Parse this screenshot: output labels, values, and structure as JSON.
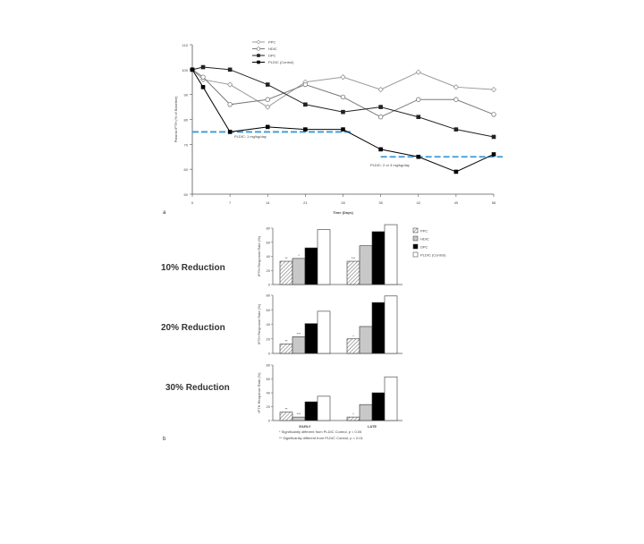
{
  "panel_a": {
    "panel_letter": "a",
    "threshold_labels": [
      "PLDIC: 1 mg/kg/day",
      "PLDIC: 2 or 3 mg/kg/day"
    ],
    "threshold_color": "#3a9ad9"
  },
  "panel_b": {
    "panel_letter": "b",
    "row_labels": [
      "10% Reduction",
      "20% Reduction",
      "30% Reduction"
    ],
    "footnotes": [
      "* Significantly different from PLDIC Control, p < 0.05",
      "** Significantly different from PLDIC Control, p < 0.01"
    ]
  },
  "chart_data": [
    {
      "type": "line",
      "title": "",
      "xlabel": "Time (Days)",
      "ylabel": "Plasma IPTH (% of Baseline)",
      "x": [
        0,
        7,
        14,
        21,
        28,
        35,
        42,
        49,
        56
      ],
      "xticks": [
        "0",
        "7",
        "14",
        "21",
        "28",
        "35",
        "42",
        "49",
        "56"
      ],
      "yticks": [
        "50",
        "60",
        "70",
        "80",
        "90",
        "100",
        "110"
      ],
      "ylim": [
        50,
        110
      ],
      "grid": false,
      "legend": "top-left",
      "series": [
        {
          "name": "PPC",
          "marker": "diamond-open",
          "x": [
            0,
            2,
            7,
            14,
            21,
            28,
            35,
            42,
            49,
            56
          ],
          "values": [
            100,
            96,
            94,
            85,
            95,
            97,
            92,
            99,
            93,
            92
          ]
        },
        {
          "name": "HDIC",
          "marker": "circle-open",
          "x": [
            0,
            2,
            7,
            14,
            21,
            28,
            35,
            42,
            49,
            56
          ],
          "values": [
            100,
            97,
            86,
            88,
            94,
            89,
            81,
            88,
            88,
            82
          ]
        },
        {
          "name": "DPC",
          "marker": "square-filled",
          "x": [
            0,
            2,
            7,
            14,
            21,
            28,
            35,
            42,
            49,
            56
          ],
          "values": [
            100,
            101,
            100,
            94,
            86,
            83,
            85,
            81,
            76,
            73
          ]
        },
        {
          "name": "PLDIC (Control)",
          "marker": "square-filled",
          "x": [
            0,
            2,
            7,
            14,
            21,
            28,
            35,
            42,
            49,
            56
          ],
          "values": [
            100,
            93,
            75,
            77,
            76,
            76,
            68,
            65,
            59,
            66
          ]
        }
      ],
      "thresholds": [
        {
          "value": 75,
          "x_range": [
            0,
            28
          ]
        },
        {
          "value": 65,
          "x_range": [
            35,
            56
          ]
        }
      ]
    },
    {
      "type": "bar",
      "title": "10% Reduction",
      "ylabel": "IPTH Response Rate (%)",
      "categories": [
        "EARLY",
        "LATE"
      ],
      "ylim": [
        0,
        80
      ],
      "yticks": [
        "0",
        "20",
        "40",
        "60",
        "80"
      ],
      "legend": "right",
      "series": [
        {
          "name": "PPC",
          "values": [
            33,
            33
          ]
        },
        {
          "name": "HDIC",
          "values": [
            37,
            55
          ]
        },
        {
          "name": "DPC",
          "values": [
            52,
            75
          ]
        },
        {
          "name": "PLDIC (Control)",
          "values": [
            78,
            85
          ]
        }
      ],
      "annotations": [
        "**",
        "*",
        "***",
        ""
      ]
    },
    {
      "type": "bar",
      "title": "20% Reduction",
      "ylabel": "IPTH Response Rate (%)",
      "categories": [
        "EARLY",
        "LATE"
      ],
      "ylim": [
        0,
        80
      ],
      "yticks": [
        "0",
        "20",
        "40",
        "60",
        "80"
      ],
      "series": [
        {
          "name": "PPC",
          "values": [
            13,
            20
          ]
        },
        {
          "name": "HDIC",
          "values": [
            23,
            37
          ]
        },
        {
          "name": "DPC",
          "values": [
            41,
            70
          ]
        },
        {
          "name": "PLDIC (Control)",
          "values": [
            58,
            79
          ]
        }
      ],
      "annotations": [
        "**",
        "***",
        "*",
        ""
      ]
    },
    {
      "type": "bar",
      "title": "30% Reduction",
      "ylabel": "IPTH Response Rate (%)",
      "categories": [
        "EARLY",
        "LATE"
      ],
      "xticks": [
        "EARLY",
        "LATE"
      ],
      "ylim": [
        0,
        80
      ],
      "yticks": [
        "0",
        "20",
        "40",
        "60",
        "80"
      ],
      "series": [
        {
          "name": "PPC",
          "values": [
            12,
            5
          ]
        },
        {
          "name": "HDIC",
          "values": [
            5,
            23
          ]
        },
        {
          "name": "DPC",
          "values": [
            27,
            40
          ]
        },
        {
          "name": "PLDIC (Control)",
          "values": [
            35,
            63
          ]
        }
      ],
      "annotations": [
        "**",
        "***",
        "*",
        ""
      ]
    }
  ]
}
